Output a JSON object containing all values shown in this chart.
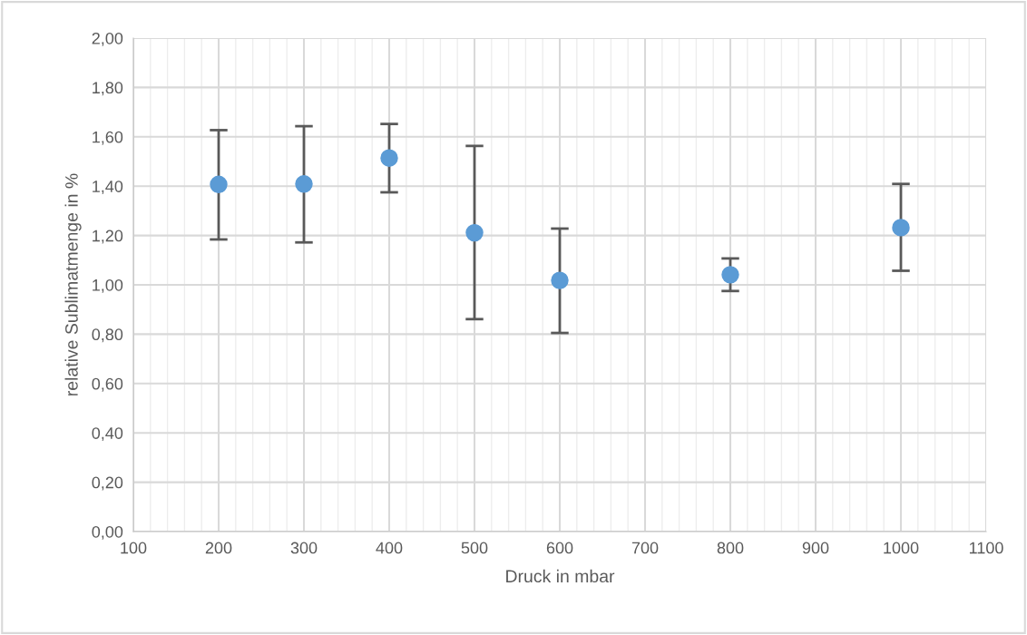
{
  "chart_data": {
    "type": "scatter",
    "xlabel": "Druck in mbar",
    "ylabel": "relative Sublimatmenge in %",
    "x": [
      200,
      300,
      400,
      500,
      600,
      800,
      1000
    ],
    "series": [
      {
        "color": "#5b9bd5",
        "values": [
          1.407,
          1.409,
          1.514,
          1.211,
          1.018,
          1.041,
          1.232
        ],
        "errors": [
          [
            1.184,
            1.627
          ],
          [
            1.172,
            1.643
          ],
          [
            1.375,
            1.652
          ],
          [
            0.861,
            1.563
          ],
          [
            0.805,
            1.228
          ],
          [
            0.975,
            1.107
          ],
          [
            1.057,
            1.409
          ]
        ]
      }
    ],
    "xlim": [
      100,
      1100
    ],
    "xticks": [
      100,
      200,
      300,
      400,
      500,
      600,
      700,
      800,
      900,
      1000,
      1100
    ],
    "ylim": [
      0,
      2
    ],
    "yticks": [
      {
        "value": 0,
        "label": "0,00"
      },
      {
        "value": 0.2,
        "label": "0,20"
      },
      {
        "value": 0.4,
        "label": "0,40"
      },
      {
        "value": 0.6,
        "label": "0,60"
      },
      {
        "value": 0.8,
        "label": "0,80"
      },
      {
        "value": 1.0,
        "label": "1,00"
      },
      {
        "value": 1.2,
        "label": "1,20"
      },
      {
        "value": 1.4,
        "label": "1,40"
      },
      {
        "value": 1.6,
        "label": "1,60"
      },
      {
        "value": 1.8,
        "label": "1,80"
      },
      {
        "value": 2.0,
        "label": "2,00"
      }
    ],
    "grid": true,
    "marker": "circle"
  }
}
